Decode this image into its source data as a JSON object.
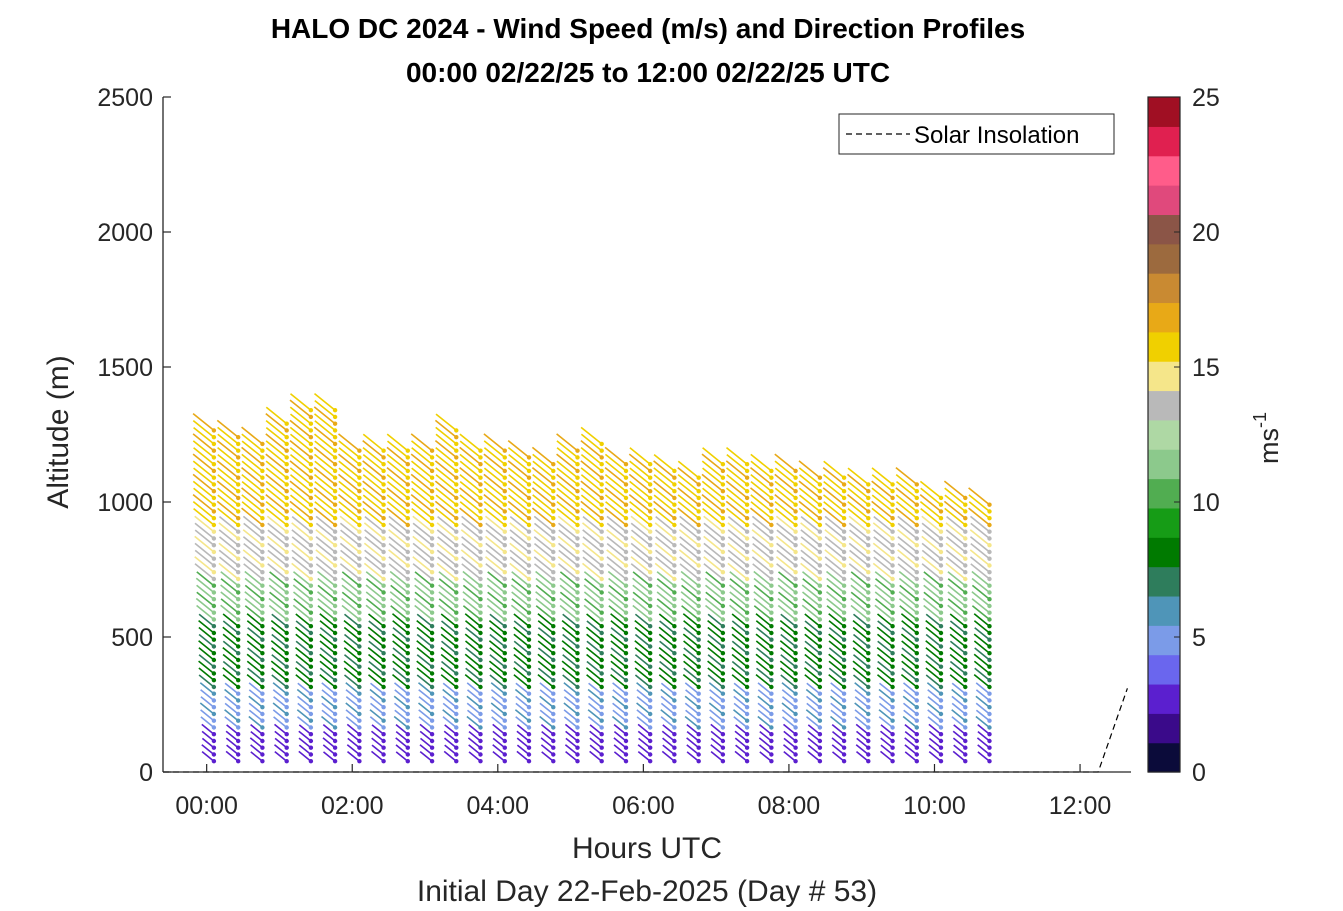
{
  "chart_data": {
    "type": "quiver",
    "title": "HALO DC 2024 - Wind Speed (m/s) and Direction Profiles",
    "subtitle": "00:00 02/22/25 to 12:00 02/22/25  UTC",
    "xlabel": "Hours UTC",
    "ylabel": "Altitude (m)",
    "footer": "Initial Day 22-Feb-2025 (Day # 53)",
    "x_ticks": [
      "00:00",
      "02:00",
      "04:00",
      "06:00",
      "08:00",
      "10:00",
      "12:00"
    ],
    "x_tick_hours": [
      0,
      2,
      4,
      6,
      8,
      10,
      12
    ],
    "xlim_hours": [
      -0.6,
      12.7
    ],
    "y_ticks": [
      "0",
      "500",
      "1000",
      "1500",
      "2000",
      "2500"
    ],
    "ylim": [
      0,
      2500
    ],
    "colorbar": {
      "label": "ms",
      "label_sup": "-1",
      "ticks": [
        "0",
        "5",
        "10",
        "15",
        "20",
        "25"
      ],
      "range": [
        0,
        25
      ],
      "colors": [
        "#0b0b3a",
        "#3a0a8a",
        "#5b1fcf",
        "#6a66ee",
        "#7b9be8",
        "#4f95b8",
        "#2e7d5c",
        "#007a00",
        "#169c16",
        "#51ad51",
        "#8cc98c",
        "#aed8a4",
        "#b9b9b9",
        "#f5e68a",
        "#f0d000",
        "#e8a917",
        "#c98a32",
        "#9c6a3e",
        "#8b5547",
        "#e0497c",
        "#ff5c8a",
        "#e02050",
        "#a00f23"
      ]
    },
    "legend": {
      "entries": [
        "Solar Insolation"
      ],
      "location": "top-right",
      "line_style": "dashed",
      "color": "#000000"
    },
    "profiles": {
      "time_start_hours": 0.1,
      "time_step_hours": 0.333,
      "count": 33,
      "altitude_min_m": 40,
      "altitude_step_m": 25,
      "top_altitude_m": [
        1270,
        1250,
        1220,
        1300,
        1350,
        1360,
        1210,
        1200,
        1200,
        1210,
        1280,
        1210,
        1200,
        1180,
        1160,
        1190,
        1220,
        1150,
        1140,
        1130,
        1100,
        1140,
        1140,
        1120,
        1120,
        1100,
        1090,
        1080,
        1070,
        1080,
        1030,
        1030,
        1010
      ],
      "direction_note": "northwesterly flow aloft, arrows pointing toward southeast"
    },
    "wind_speed_layers_m_s": [
      {
        "altitude_max_m": 150,
        "speed": 2.5
      },
      {
        "altitude_max_m": 300,
        "speed": 4.8
      },
      {
        "altitude_max_m": 550,
        "speed": 7.5
      },
      {
        "altitude_max_m": 700,
        "speed": 11.0
      },
      {
        "altitude_max_m": 900,
        "speed": 13.5
      },
      {
        "altitude_max_m": 1400,
        "speed": 16.0
      }
    ],
    "solar_insolation": {
      "x_hours": [
        -0.6,
        12.25,
        12.65
      ],
      "y_m": [
        0,
        0,
        310
      ]
    }
  }
}
